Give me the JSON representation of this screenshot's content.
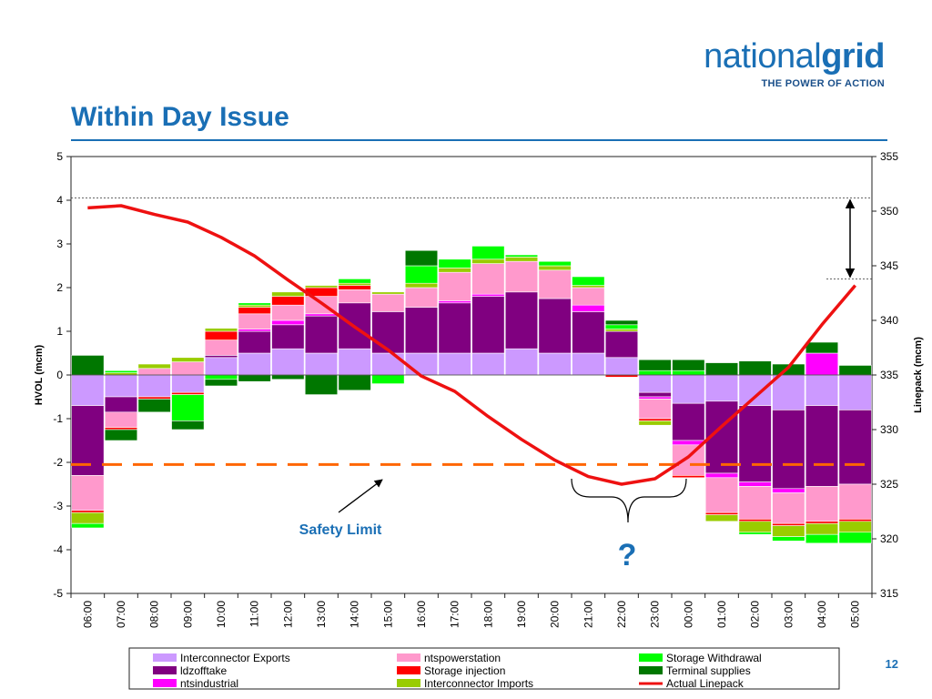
{
  "slide": {
    "title": "Within Day Issue",
    "page_number": "12",
    "accent_color": "#1a6fb5"
  },
  "logo": {
    "word_regular": "national",
    "word_bold": "grid",
    "tagline": "THE POWER OF ACTION"
  },
  "annotations": {
    "safety_label": "Safety Limit",
    "question": "?"
  },
  "chart_data": {
    "type": "bar",
    "stacked": true,
    "title": "",
    "xlabel": "",
    "ylabel": "HVOL (mcm)",
    "y2label": "Linepack (mcm)",
    "ylim": [
      -5,
      5
    ],
    "y2lim": [
      315,
      355
    ],
    "yticks": [
      5,
      4,
      3,
      2,
      1,
      0,
      -1,
      -2,
      -3,
      -4,
      -5
    ],
    "y2ticks": [
      355,
      350,
      345,
      340,
      335,
      330,
      325,
      320,
      315
    ],
    "categories": [
      "06:00",
      "07:00",
      "08:00",
      "09:00",
      "10:00",
      "11:00",
      "12:00",
      "13:00",
      "14:00",
      "15:00",
      "16:00",
      "17:00",
      "18:00",
      "19:00",
      "20:00",
      "21:00",
      "22:00",
      "23:00",
      "00:00",
      "01:00",
      "02:00",
      "03:00",
      "04:00",
      "05:00"
    ],
    "series": [
      {
        "name": "Interconnector Exports",
        "color": "#cc99ff",
        "values": [
          -0.7,
          -0.5,
          -0.5,
          -0.4,
          0.4,
          0.5,
          0.6,
          0.5,
          0.6,
          0.5,
          0.5,
          0.5,
          0.5,
          0.6,
          0.5,
          0.5,
          0.4,
          -0.4,
          -0.65,
          -0.6,
          -0.7,
          -0.8,
          -0.7,
          -0.8
        ]
      },
      {
        "name": "ldzofftake",
        "color": "#800080",
        "values": [
          -1.6,
          -0.35,
          0,
          0,
          0.05,
          0.5,
          0.55,
          0.85,
          1.05,
          0.95,
          1.05,
          1.15,
          1.3,
          1.3,
          1.25,
          0.95,
          0.6,
          -0.1,
          -0.85,
          -1.65,
          -1.75,
          -1.8,
          -1.85,
          -1.7
        ]
      },
      {
        "name": "ntsindustrial",
        "color": "#ff00ff",
        "values": [
          0,
          0,
          0,
          0,
          0,
          0.05,
          0.1,
          0.05,
          0,
          0,
          0,
          0.05,
          0.05,
          0,
          0,
          0.15,
          0,
          -0.05,
          -0.1,
          -0.1,
          -0.1,
          -0.1,
          0.5,
          0
        ]
      },
      {
        "name": "ntspowerstation",
        "color": "#ff99cc",
        "values": [
          -0.8,
          -0.35,
          0.15,
          0.3,
          0.35,
          0.35,
          0.35,
          0.4,
          0.3,
          0.4,
          0.45,
          0.65,
          0.7,
          0.7,
          0.65,
          0.4,
          0,
          -0.45,
          -0.7,
          -0.8,
          -0.75,
          -0.7,
          -0.8,
          -0.8
        ]
      },
      {
        "name": "Storage injection",
        "color": "#ff0000",
        "values": [
          -0.05,
          -0.05,
          -0.05,
          -0.05,
          0.2,
          0.15,
          0.2,
          0.2,
          0.1,
          0,
          0,
          0,
          0,
          0,
          0,
          0,
          -0.05,
          -0.05,
          -0.05,
          -0.05,
          -0.05,
          -0.05,
          -0.05,
          -0.05
        ]
      },
      {
        "name": "Interconnector Imports",
        "color": "#99cc00",
        "values": [
          -0.25,
          0.05,
          0.1,
          0.1,
          0.07,
          0.05,
          0.1,
          0.05,
          0.05,
          0.05,
          0.1,
          0.1,
          0.1,
          0.1,
          0.1,
          0.05,
          0.05,
          -0.1,
          0,
          -0.15,
          -0.25,
          -0.25,
          -0.25,
          -0.25
        ]
      },
      {
        "name": "Storage Withdrawal",
        "color": "#00ff00",
        "values": [
          -0.1,
          0.05,
          0,
          -0.6,
          -0.1,
          0.05,
          0,
          0,
          0.1,
          -0.2,
          0.4,
          0.2,
          0.3,
          0.05,
          0.1,
          0.2,
          0.1,
          0.1,
          0.1,
          0,
          -0.05,
          -0.1,
          -0.2,
          -0.25
        ]
      },
      {
        "name": "Terminal supplies",
        "color": "#007700",
        "values": [
          0.45,
          -0.25,
          -0.3,
          -0.2,
          -0.15,
          -0.15,
          -0.1,
          -0.45,
          -0.35,
          0,
          0.35,
          0,
          0,
          0,
          0,
          0,
          0.1,
          0.25,
          0.25,
          0.28,
          0.32,
          0.25,
          0.25,
          0.22
        ]
      }
    ],
    "line_series": {
      "name": "Actual Linepack",
      "color": "#ee1111",
      "axis": "right",
      "values": [
        350.3,
        350.5,
        349.7,
        349.0,
        347.6,
        345.9,
        343.7,
        341.6,
        339.4,
        337.3,
        334.9,
        333.5,
        331.2,
        329.1,
        327.2,
        325.7,
        325.0,
        325.5,
        327.5,
        330.3,
        333.0,
        335.7,
        339.6,
        343.2
      ]
    },
    "reference_lines": [
      {
        "label": "Safety Limit",
        "y": -2.05,
        "color": "#ff6600",
        "style": "dashed"
      },
      {
        "y2": 351.2,
        "color": "#333333",
        "style": "dotted"
      },
      {
        "y2": 343.8,
        "color": "#333333",
        "style": "dotted"
      }
    ],
    "legend": {
      "placement": "bottom",
      "entries": [
        {
          "label": "Interconnector Exports",
          "kind": "box",
          "color": "#cc99ff"
        },
        {
          "label": "ldzofftake",
          "kind": "box",
          "color": "#800080"
        },
        {
          "label": "ntsindustrial",
          "kind": "box",
          "color": "#ff00ff"
        },
        {
          "label": "ntspowerstation",
          "kind": "box",
          "color": "#ff99cc"
        },
        {
          "label": "Storage injection",
          "kind": "box",
          "color": "#ff0000"
        },
        {
          "label": "Interconnector Imports",
          "kind": "box",
          "color": "#99cc00"
        },
        {
          "label": "Storage Withdrawal",
          "kind": "box",
          "color": "#00ff00"
        },
        {
          "label": "Terminal supplies",
          "kind": "box",
          "color": "#007700"
        },
        {
          "label": "Actual Linepack",
          "kind": "line",
          "color": "#ee1111"
        }
      ]
    },
    "grid": false
  }
}
